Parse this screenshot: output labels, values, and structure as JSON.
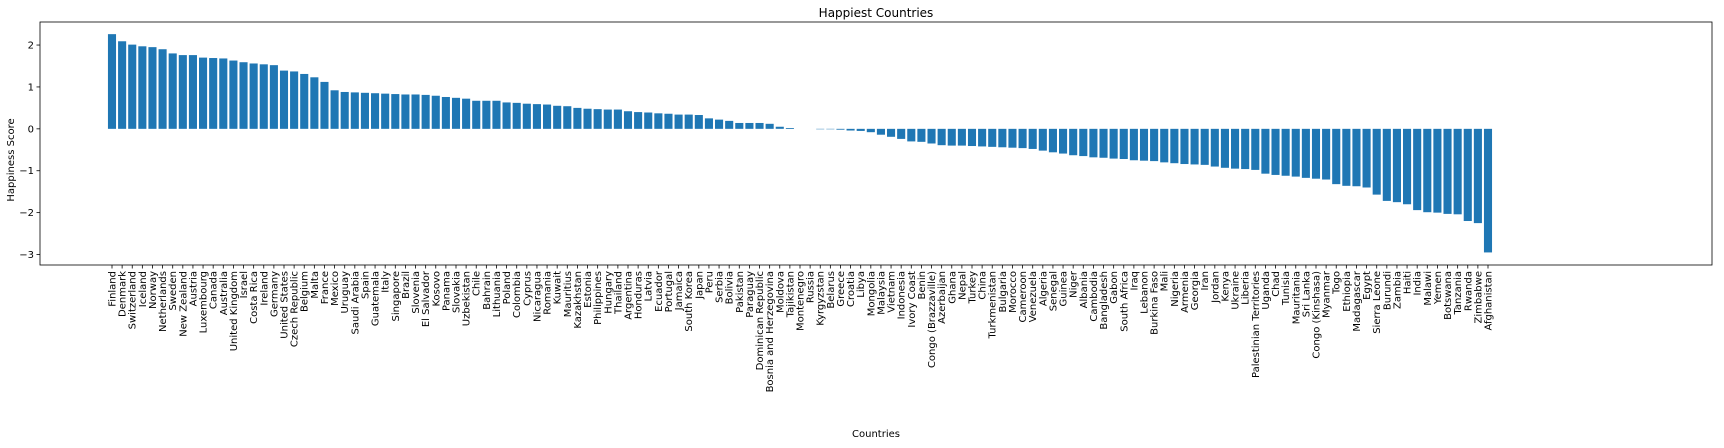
{
  "chart_data": {
    "type": "bar",
    "title": "Happiest Countries",
    "xlabel": "Countries",
    "ylabel": "Happiness Score",
    "ylim": [
      -3.25,
      2.55
    ],
    "yticks": [
      -3,
      -2,
      -1,
      0,
      1,
      2
    ],
    "grid": false,
    "bar_color": "#1f77b4",
    "categories": [
      "Finland",
      "Denmark",
      "Switzerland",
      "Iceland",
      "Norway",
      "Netherlands",
      "Sweden",
      "New Zealand",
      "Austria",
      "Luxembourg",
      "Canada",
      "Australia",
      "United Kingdom",
      "Israel",
      "Costa Rica",
      "Ireland",
      "Germany",
      "United States",
      "Czech Republic",
      "Belgium",
      "Malta",
      "France",
      "Mexico",
      "Uruguay",
      "Saudi Arabia",
      "Spain",
      "Guatemala",
      "Italy",
      "Singapore",
      "Brazil",
      "Slovenia",
      "El Salvador",
      "Kosovo",
      "Panama",
      "Slovakia",
      "Uzbekistan",
      "Chile",
      "Bahrain",
      "Lithuania",
      "Poland",
      "Colombia",
      "Cyprus",
      "Nicaragua",
      "Romania",
      "Kuwait",
      "Mauritius",
      "Kazakhstan",
      "Estonia",
      "Philippines",
      "Hungary",
      "Thailand",
      "Argentina",
      "Honduras",
      "Latvia",
      "Ecuador",
      "Portugal",
      "Jamaica",
      "South Korea",
      "Japan",
      "Peru",
      "Serbia",
      "Bolivia",
      "Pakistan",
      "Paraguay",
      "Dominican Republic",
      "Bosnia and Herzegovina",
      "Moldova",
      "Tajikistan",
      "Montenegro",
      "Russia",
      "Kyrgyzstan",
      "Belarus",
      "Greece",
      "Croatia",
      "Libya",
      "Mongolia",
      "Malaysia",
      "Vietnam",
      "Indonesia",
      "Ivory Coast",
      "Benin",
      "Congo (Brazzaville)",
      "Azerbaijan",
      "Ghana",
      "Nepal",
      "Turkey",
      "China",
      "Turkmenistan",
      "Bulgaria",
      "Morocco",
      "Cameroon",
      "Venezuela",
      "Algeria",
      "Senegal",
      "Guinea",
      "Niger",
      "Albania",
      "Cambodia",
      "Bangladesh",
      "Gabon",
      "South Africa",
      "Iraq",
      "Lebanon",
      "Burkina Faso",
      "Mali",
      "Nigeria",
      "Armenia",
      "Georgia",
      "Iran",
      "Jordan",
      "Kenya",
      "Ukraine",
      "Liberia",
      "Palestinian Territories",
      "Uganda",
      "Chad",
      "Tunisia",
      "Mauritania",
      "Sri Lanka",
      "Congo (Kinshasa)",
      "Myanmar",
      "Togo",
      "Ethiopia",
      "Madagascar",
      "Egypt",
      "Sierra Leone",
      "Burundi",
      "Zambia",
      "Haiti",
      "India",
      "Malawi",
      "Yemen",
      "Botswana",
      "Tanzania",
      "Rwanda",
      "Zimbabwe",
      "Afghanistan"
    ],
    "values": [
      2.26,
      2.09,
      2.01,
      1.97,
      1.95,
      1.9,
      1.8,
      1.76,
      1.76,
      1.7,
      1.69,
      1.68,
      1.63,
      1.59,
      1.56,
      1.54,
      1.52,
      1.39,
      1.37,
      1.31,
      1.23,
      1.12,
      0.92,
      0.88,
      0.87,
      0.86,
      0.85,
      0.84,
      0.83,
      0.82,
      0.82,
      0.81,
      0.79,
      0.76,
      0.74,
      0.72,
      0.67,
      0.67,
      0.67,
      0.63,
      0.62,
      0.6,
      0.59,
      0.58,
      0.55,
      0.54,
      0.5,
      0.48,
      0.47,
      0.46,
      0.46,
      0.42,
      0.4,
      0.39,
      0.37,
      0.36,
      0.34,
      0.34,
      0.33,
      0.25,
      0.22,
      0.19,
      0.14,
      0.14,
      0.14,
      0.12,
      0.05,
      0.02,
      0.0,
      0.0,
      -0.01,
      -0.01,
      -0.02,
      -0.04,
      -0.05,
      -0.08,
      -0.14,
      -0.19,
      -0.24,
      -0.3,
      -0.31,
      -0.35,
      -0.39,
      -0.4,
      -0.4,
      -0.41,
      -0.42,
      -0.43,
      -0.44,
      -0.45,
      -0.46,
      -0.48,
      -0.52,
      -0.56,
      -0.59,
      -0.63,
      -0.65,
      -0.68,
      -0.69,
      -0.71,
      -0.72,
      -0.75,
      -0.76,
      -0.77,
      -0.8,
      -0.82,
      -0.84,
      -0.85,
      -0.86,
      -0.9,
      -0.93,
      -0.95,
      -0.96,
      -0.98,
      -1.07,
      -1.1,
      -1.12,
      -1.14,
      -1.17,
      -1.19,
      -1.21,
      -1.32,
      -1.36,
      -1.37,
      -1.4,
      -1.57,
      -1.72,
      -1.75,
      -1.8,
      -1.94,
      -1.99,
      -2.0,
      -2.03,
      -2.04,
      -2.2,
      -2.25,
      -2.95
    ]
  }
}
